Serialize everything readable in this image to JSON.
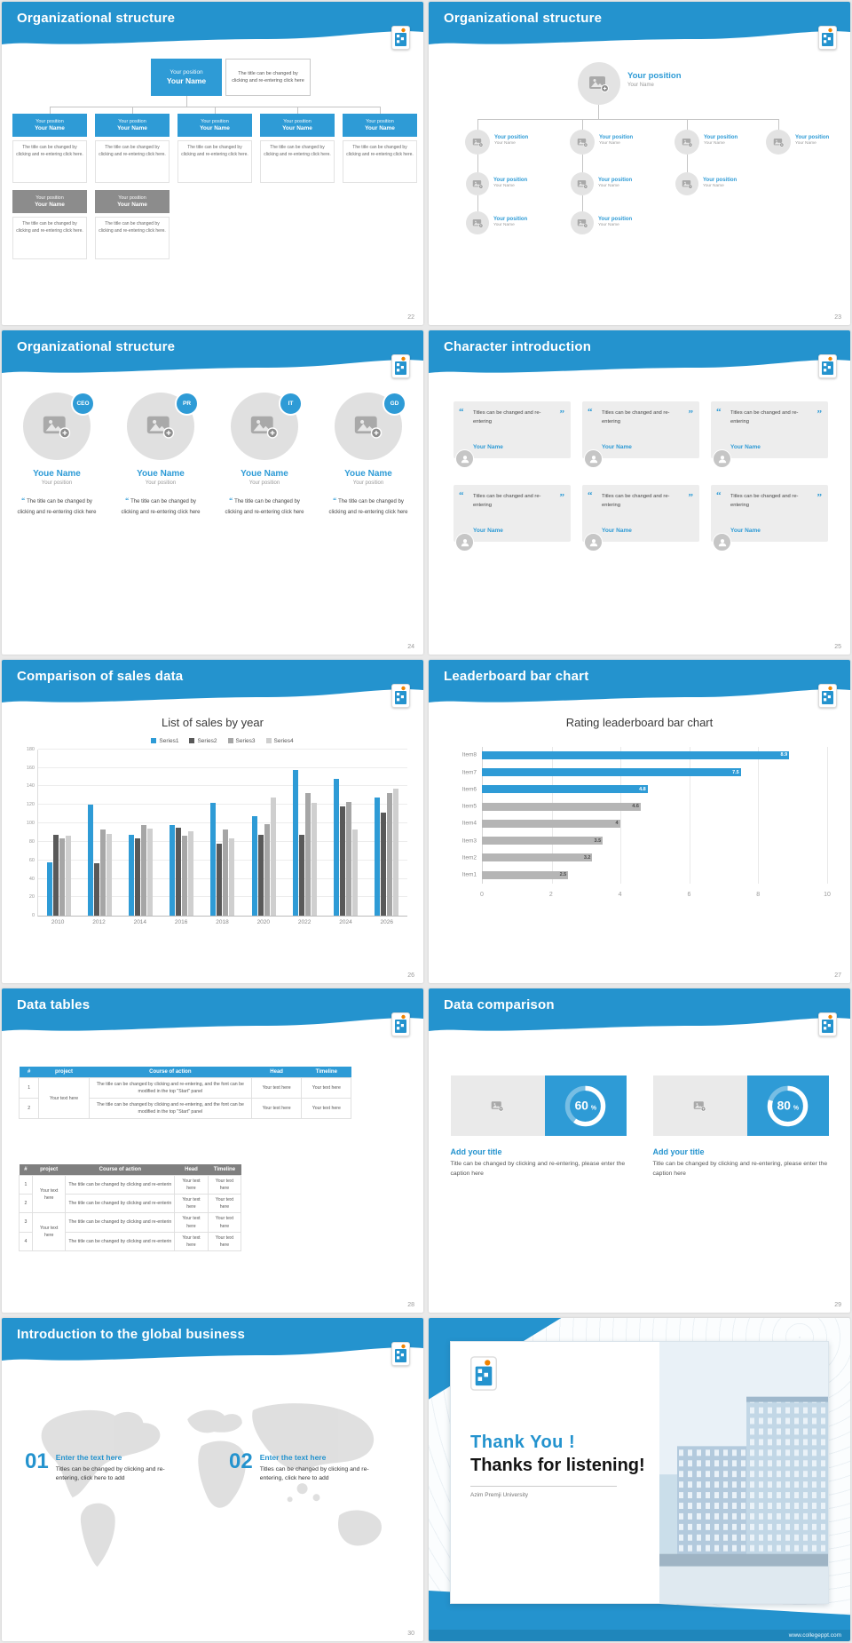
{
  "common": {
    "position": "Your position",
    "name": "Your Name",
    "small_caption": "The title can be changed by clicking and re-entering click here."
  },
  "slide22": {
    "title": "Organizational structure",
    "page": "22",
    "top_caption": "The title can be changed by clicking and re-entering click here"
  },
  "slide23": {
    "title": "Organizational structure",
    "page": "23"
  },
  "slide24": {
    "title": "Organizational structure",
    "page": "24",
    "name": "Youe Name",
    "badges": [
      "CEO",
      "PR",
      "IT",
      "GD"
    ],
    "caption": "The title can be changed by clicking and re-entering click here"
  },
  "slide25": {
    "title": "Character introduction",
    "page": "25",
    "quote": "Titles can be changed and re-entering"
  },
  "slide26": {
    "title": "Comparison of sales data",
    "page": "26"
  },
  "slide27": {
    "title": "Leaderboard bar chart",
    "page": "27"
  },
  "slide28": {
    "title": "Data tables",
    "page": "28",
    "columns": [
      "#",
      "project",
      "Course of action",
      "Head",
      "Timeline"
    ],
    "table1": {
      "rows": [
        "1",
        "2"
      ],
      "project": "Your text here",
      "course": "The title can be changed by clicking and re-entering, and the font can be modified in the top \"Start\" panel",
      "cell": "Your text here"
    },
    "table2": {
      "rows": [
        "1",
        "2",
        "3",
        "4"
      ],
      "project": "Your text here",
      "course": "The title can be changed by clicking and re-enterin",
      "cell": "Your text here"
    }
  },
  "slide29": {
    "title": "Data comparison",
    "page": "29",
    "add_title": "Add your title",
    "caption": "Title can be changed by clicking and re-entering, please enter the caption here"
  },
  "slide30": {
    "title": "Introduction to the global business",
    "page": "30",
    "items": [
      {
        "num": "01",
        "heading": "Enter the text here",
        "caption": "Titles can be changed by clicking and re-entering, click here to add"
      },
      {
        "num": "02",
        "heading": "Enter the text here",
        "caption": "Titles can be changed by clicking and re-entering, click here to add"
      }
    ]
  },
  "slide31": {
    "thank_you": "Thank You !",
    "subtitle": "Thanks for listening!",
    "org": "Azim Premji University",
    "url": "www.collegeppt.com"
  },
  "colors": {
    "accent_blue": "#2493ce",
    "box_blue": "#2e9bd6",
    "box_gray": "#8c8c8c",
    "orange": "#f08300"
  },
  "chart_data": [
    {
      "id": "sales-by-year",
      "type": "bar",
      "title": "List of sales by year",
      "categories": [
        "2010",
        "2012",
        "2014",
        "2016",
        "2018",
        "2020",
        "2022",
        "2024",
        "2026"
      ],
      "series": [
        {
          "name": "Series1",
          "color": "#2e9bd6",
          "values": [
            58,
            120,
            88,
            98,
            122,
            108,
            158,
            148,
            128
          ]
        },
        {
          "name": "Series2",
          "color": "#595959",
          "values": [
            88,
            57,
            84,
            95,
            78,
            88,
            88,
            118,
            112
          ]
        },
        {
          "name": "Series3",
          "color": "#a6a6a6",
          "values": [
            84,
            93,
            98,
            87,
            93,
            99,
            133,
            123,
            133
          ]
        },
        {
          "name": "Series4",
          "color": "#cfcfcf",
          "values": [
            87,
            89,
            94,
            91,
            84,
            128,
            122,
            93,
            138
          ]
        }
      ],
      "ylim": [
        0,
        180
      ],
      "ytick": 20,
      "grid": true,
      "legend_position": "top"
    },
    {
      "id": "rating-leaderboard",
      "type": "bar-horizontal",
      "title": "Rating leaderboard bar chart",
      "categories": [
        "Item8",
        "Item7",
        "Item6",
        "Item5",
        "Item4",
        "Item3",
        "Item2",
        "Item1"
      ],
      "values": [
        8.9,
        7.5,
        4.8,
        4.6,
        4,
        3.5,
        3.2,
        2.5
      ],
      "colors": [
        "#2e9bd6",
        "#2e9bd6",
        "#2e9bd6",
        "#b5b5b5",
        "#b5b5b5",
        "#b5b5b5",
        "#b5b5b5",
        "#b5b5b5"
      ],
      "accent_color": "#2e9bd6",
      "xlim": [
        0,
        10
      ],
      "xtick": 2,
      "grid": true
    },
    {
      "id": "data-comparison-donuts",
      "type": "pie",
      "values": [
        60,
        80
      ],
      "unit": "%"
    }
  ]
}
